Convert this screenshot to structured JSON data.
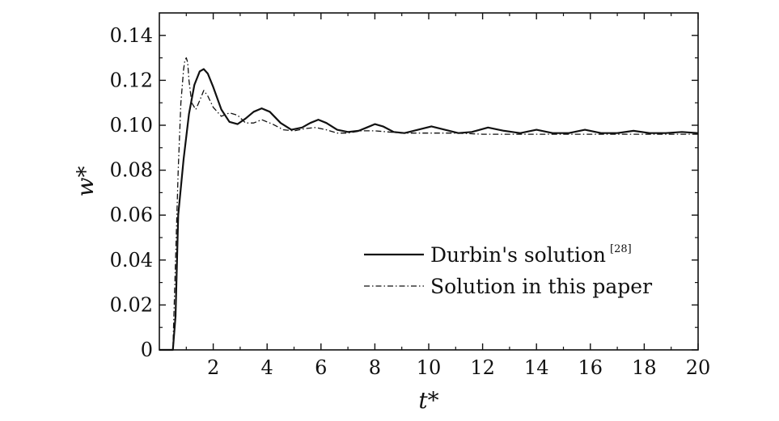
{
  "chart_data": {
    "type": "line",
    "xlabel": "t*",
    "ylabel": "w*",
    "xlim": [
      0,
      20
    ],
    "ylim": [
      0,
      0.15
    ],
    "x_ticks": [
      2,
      4,
      6,
      8,
      10,
      12,
      14,
      16,
      18,
      20
    ],
    "x_tick_labels": [
      "2",
      "4",
      "6",
      "8",
      "10",
      "12",
      "14",
      "16",
      "18",
      "20"
    ],
    "y_ticks": [
      0,
      0.02,
      0.04,
      0.06,
      0.08,
      0.1,
      0.12,
      0.14
    ],
    "y_tick_labels": [
      "0",
      "0.02",
      "0.04",
      "0.06",
      "0.08",
      "0.10",
      "0.12",
      "0.14"
    ],
    "grid": false,
    "legend_position": "lower-right",
    "series": [
      {
        "name": "Durbin's solution",
        "name_superscript": "[28]",
        "style": "solid",
        "x": [
          0,
          0.5,
          0.6,
          0.7,
          0.9,
          1.1,
          1.3,
          1.5,
          1.65,
          1.8,
          2.0,
          2.3,
          2.6,
          2.9,
          3.2,
          3.5,
          3.8,
          4.1,
          4.5,
          4.9,
          5.3,
          5.6,
          5.9,
          6.2,
          6.6,
          7.0,
          7.4,
          7.7,
          8.0,
          8.3,
          8.7,
          9.1,
          9.6,
          10.1,
          10.6,
          11.1,
          11.6,
          12.2,
          12.8,
          13.4,
          14.0,
          14.6,
          15.2,
          15.8,
          16.4,
          17.0,
          17.6,
          18.2,
          18.8,
          19.4,
          20.0
        ],
        "y": [
          0,
          0,
          0.015,
          0.06,
          0.085,
          0.105,
          0.118,
          0.124,
          0.125,
          0.123,
          0.117,
          0.107,
          0.1015,
          0.1005,
          0.103,
          0.106,
          0.1075,
          0.106,
          0.101,
          0.098,
          0.099,
          0.101,
          0.1025,
          0.101,
          0.098,
          0.097,
          0.0975,
          0.099,
          0.1005,
          0.0995,
          0.097,
          0.0965,
          0.098,
          0.0995,
          0.098,
          0.0965,
          0.097,
          0.099,
          0.0975,
          0.0965,
          0.098,
          0.0965,
          0.0965,
          0.098,
          0.0965,
          0.0965,
          0.0975,
          0.0965,
          0.0965,
          0.097,
          0.0965
        ]
      },
      {
        "name": "Solution in this paper",
        "style": "dash-dot",
        "x": [
          0,
          0.5,
          0.6,
          0.7,
          0.8,
          0.9,
          0.95,
          1.0,
          1.05,
          1.1,
          1.2,
          1.35,
          1.5,
          1.65,
          1.8,
          2.0,
          2.3,
          2.6,
          2.9,
          3.2,
          3.5,
          3.8,
          4.2,
          4.6,
          5.0,
          5.4,
          5.8,
          6.2,
          6.6,
          7.0,
          7.5,
          8.0,
          8.5,
          9.0,
          9.5,
          10.0,
          11.0,
          12.0,
          13.0,
          14.0,
          15.0,
          16.0,
          17.0,
          18.0,
          19.0,
          20.0
        ],
        "y": [
          0,
          0,
          0.04,
          0.08,
          0.11,
          0.125,
          0.129,
          0.13,
          0.128,
          0.12,
          0.11,
          0.107,
          0.111,
          0.1155,
          0.113,
          0.108,
          0.104,
          0.1055,
          0.1045,
          0.101,
          0.101,
          0.1025,
          0.1005,
          0.098,
          0.0975,
          0.0985,
          0.099,
          0.098,
          0.0965,
          0.0965,
          0.0975,
          0.0975,
          0.097,
          0.0965,
          0.0965,
          0.0965,
          0.0965,
          0.096,
          0.096,
          0.096,
          0.096,
          0.096,
          0.096,
          0.096,
          0.096,
          0.096
        ]
      }
    ]
  }
}
